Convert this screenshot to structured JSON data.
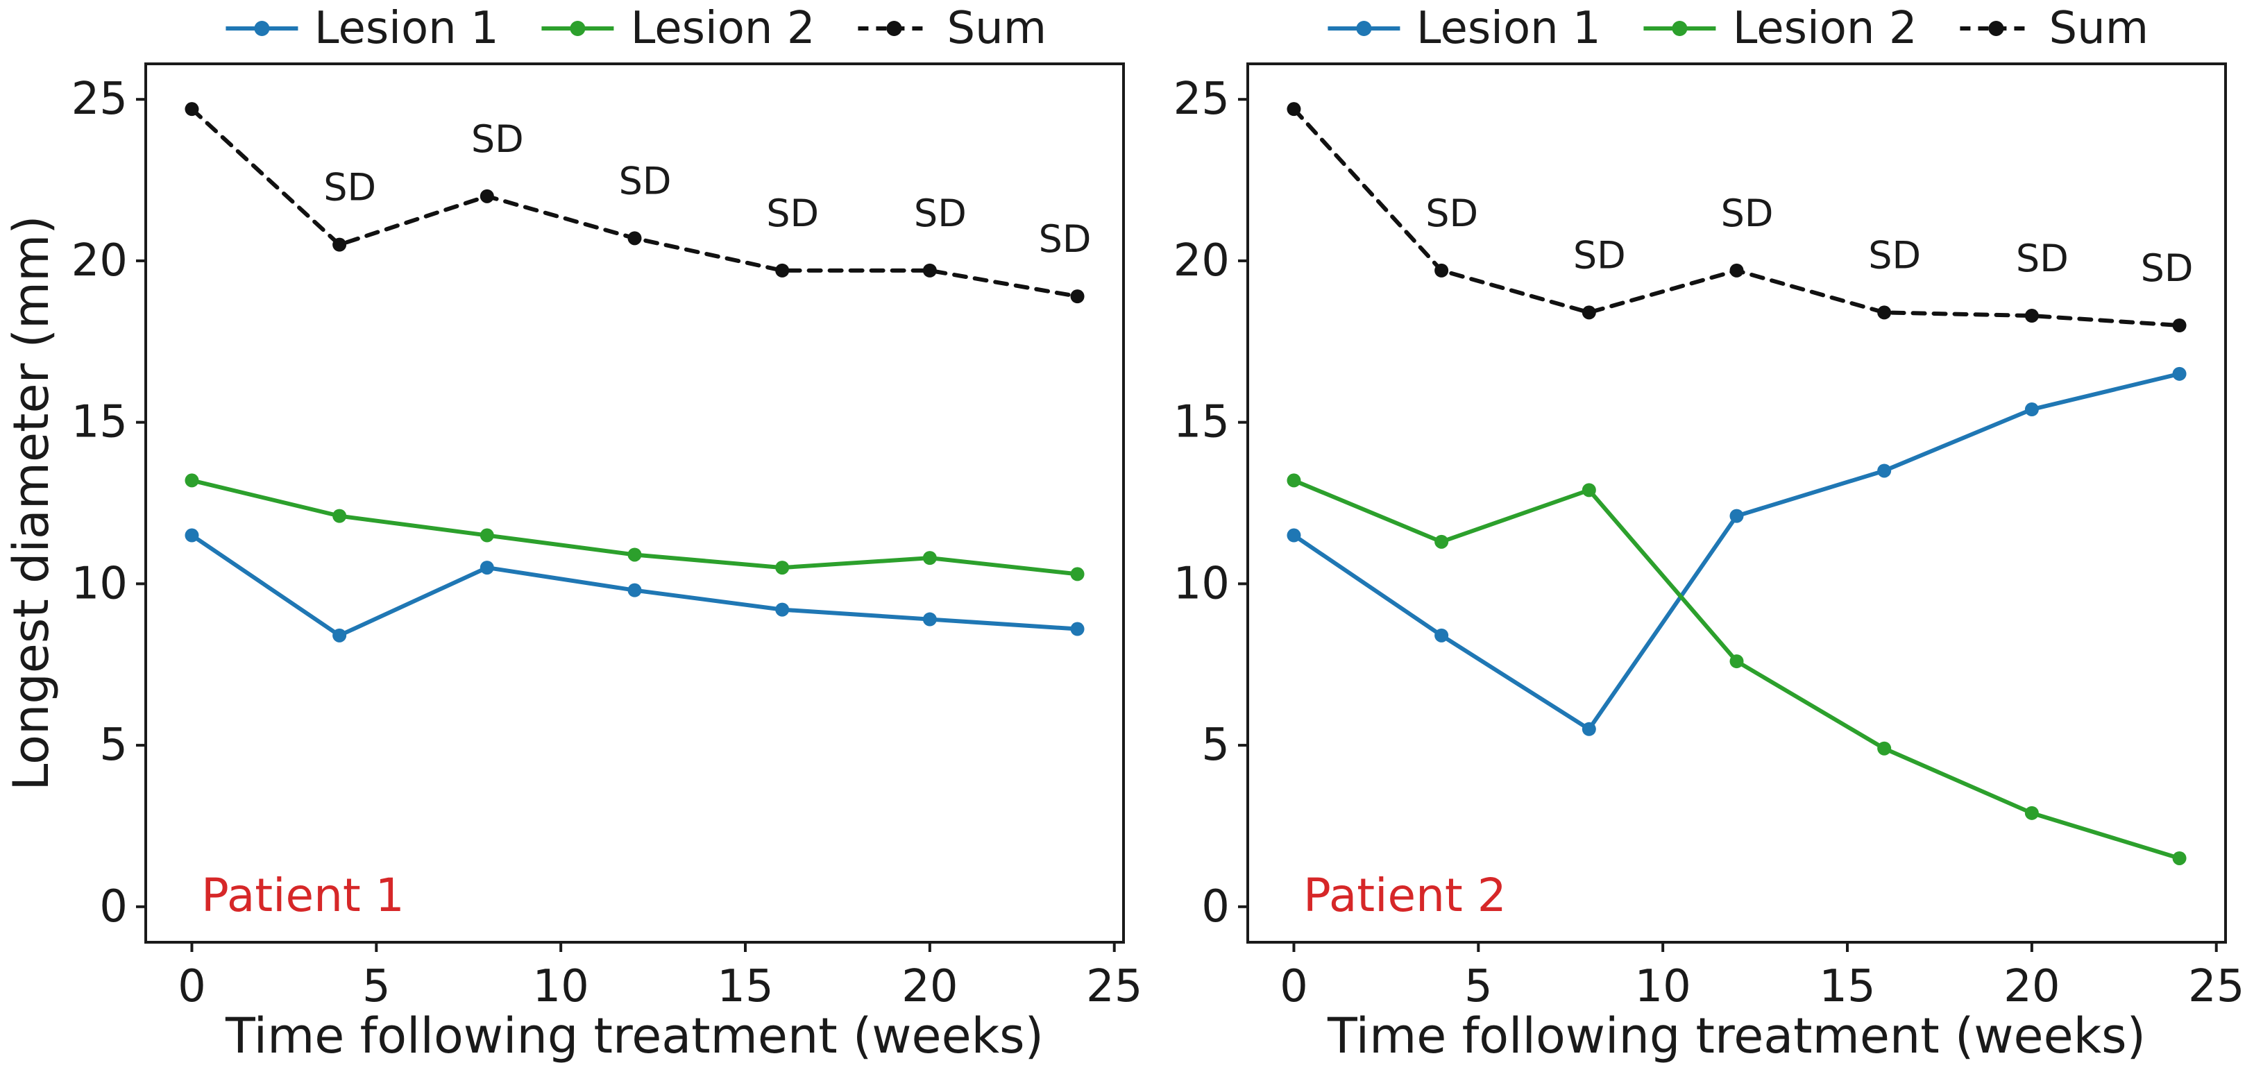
{
  "figure": {
    "background": "#ffffff",
    "ylabel": "Longest diameter (mm)",
    "text_color": "#1a1a1a",
    "accent_colors": {
      "lesion1_blue": "#1f77b4",
      "lesion2_green": "#2ca02c",
      "sum_black": "#111111",
      "patient_red": "#d62728"
    }
  },
  "chart_data": [
    {
      "type": "line",
      "patient_label": {
        "text": "Patient 1",
        "color": "#d62728"
      },
      "xlabel": "Time following treatment (weeks)",
      "ylabel": "Longest diameter (mm)",
      "x": [
        0,
        4,
        8,
        12,
        16,
        20,
        24
      ],
      "xticks": [
        0,
        5,
        10,
        15,
        20,
        25
      ],
      "yticks": [
        0,
        5,
        10,
        15,
        20,
        25
      ],
      "xlim": [
        -1.25,
        25.25
      ],
      "ylim": [
        -1.1,
        26.1
      ],
      "grid": false,
      "legend_position": "top-center",
      "series": [
        {
          "name": "Lesion 1",
          "color": "#1f77b4",
          "style": "solid",
          "values": [
            11.5,
            8.4,
            10.5,
            9.8,
            9.2,
            8.9,
            8.6
          ]
        },
        {
          "name": "Lesion 2",
          "color": "#2ca02c",
          "style": "solid",
          "values": [
            13.2,
            12.1,
            11.5,
            10.9,
            10.5,
            10.8,
            10.3
          ]
        },
        {
          "name": "Sum",
          "color": "#111111",
          "style": "dashed",
          "values": [
            24.7,
            20.5,
            22.0,
            20.7,
            19.7,
            19.7,
            18.9
          ]
        }
      ],
      "annotations": [
        {
          "text": "SD",
          "x": 4
        },
        {
          "text": "SD",
          "x": 8
        },
        {
          "text": "SD",
          "x": 12
        },
        {
          "text": "SD",
          "x": 16
        },
        {
          "text": "SD",
          "x": 20
        },
        {
          "text": "SD",
          "x": 24
        }
      ]
    },
    {
      "type": "line",
      "patient_label": {
        "text": "Patient 2",
        "color": "#d62728"
      },
      "xlabel": "Time following treatment (weeks)",
      "ylabel": "",
      "x": [
        0,
        4,
        8,
        12,
        16,
        20,
        24
      ],
      "xticks": [
        0,
        5,
        10,
        15,
        20,
        25
      ],
      "yticks": [
        0,
        5,
        10,
        15,
        20,
        25
      ],
      "xlim": [
        -1.25,
        25.25
      ],
      "ylim": [
        -1.1,
        26.1
      ],
      "grid": false,
      "legend_position": "top-center",
      "series": [
        {
          "name": "Lesion 1",
          "color": "#1f77b4",
          "style": "solid",
          "values": [
            11.5,
            8.4,
            5.5,
            12.1,
            13.5,
            15.4,
            16.5
          ]
        },
        {
          "name": "Lesion 2",
          "color": "#2ca02c",
          "style": "solid",
          "values": [
            13.2,
            11.3,
            12.9,
            7.6,
            4.9,
            2.9,
            1.5
          ]
        },
        {
          "name": "Sum",
          "color": "#111111",
          "style": "dashed",
          "values": [
            24.7,
            19.7,
            18.4,
            19.7,
            18.4,
            18.3,
            18.0
          ]
        }
      ],
      "annotations": [
        {
          "text": "SD",
          "x": 4
        },
        {
          "text": "SD",
          "x": 8
        },
        {
          "text": "SD",
          "x": 12
        },
        {
          "text": "SD",
          "x": 16
        },
        {
          "text": "SD",
          "x": 20
        },
        {
          "text": "SD",
          "x": 24
        }
      ]
    }
  ]
}
